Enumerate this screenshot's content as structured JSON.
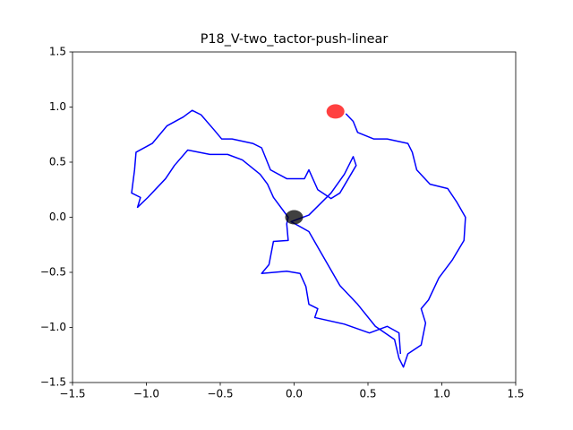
{
  "chart_data": {
    "type": "line",
    "title": "P18_V-two_tactor-push-linear",
    "xlim": [
      -1.5,
      1.5
    ],
    "ylim": [
      -1.5,
      1.5
    ],
    "xticks": [
      {
        "value": -1.5,
        "label": "−1.5"
      },
      {
        "value": -1,
        "label": "−1.0"
      },
      {
        "value": -0.5,
        "label": "−0.5"
      },
      {
        "value": 0,
        "label": "0.0"
      },
      0.5,
      {
        "value": 1,
        "label": "1.0"
      },
      1.5
    ],
    "yticks": [
      {
        "value": -1.5,
        "label": "−1.5"
      },
      {
        "value": -1,
        "label": "−1.0"
      },
      {
        "value": -0.5,
        "label": "−0.5"
      },
      {
        "value": 0,
        "label": "0.0"
      },
      0.5,
      {
        "value": 1,
        "label": "1.0"
      },
      1.5
    ],
    "grid": false,
    "series": [
      {
        "color": "#0000ff",
        "x": [
          0.35,
          0.4,
          0.43,
          0.54,
          0.63,
          0.77,
          0.8,
          0.83,
          0.92,
          1.04,
          1.1,
          1.16,
          1.15,
          1.07,
          0.98,
          0.91,
          0.86,
          0.89,
          0.86,
          0.77,
          0.74,
          0.71,
          0.68,
          0.55,
          0.43,
          0.31,
          0.19,
          0.1,
          -0.02,
          0.1,
          0.25,
          0.34,
          0.4,
          0.42,
          0.31,
          0.25,
          0.16,
          0.1,
          0.07,
          -0.05,
          -0.16,
          -0.22,
          -0.28,
          -0.42,
          -0.49,
          -0.54,
          -0.63,
          -0.69,
          -0.75,
          -0.86,
          -0.96,
          -1.07,
          -1.08,
          -1.1,
          -1.04,
          -1.06,
          -0.99,
          -0.87,
          -0.81,
          -0.72,
          -0.57,
          -0.45,
          -0.35,
          -0.23,
          -0.18,
          -0.14,
          -0.04,
          -0.05,
          -0.04,
          -0.14,
          -0.17,
          -0.22,
          -0.05,
          0.04,
          0.08,
          0.1,
          0.16,
          0.14,
          0.34,
          0.51,
          0.63,
          0.71,
          0.72
        ],
        "y": [
          0.94,
          0.87,
          0.77,
          0.71,
          0.71,
          0.67,
          0.59,
          0.43,
          0.3,
          0.26,
          0.14,
          0.0,
          -0.21,
          -0.39,
          -0.55,
          -0.75,
          -0.83,
          -0.96,
          -1.16,
          -1.24,
          -1.36,
          -1.28,
          -1.11,
          -0.99,
          -0.79,
          -0.62,
          -0.34,
          -0.13,
          -0.04,
          0.02,
          0.22,
          0.39,
          0.55,
          0.47,
          0.22,
          0.17,
          0.25,
          0.43,
          0.35,
          0.35,
          0.43,
          0.63,
          0.67,
          0.71,
          0.71,
          0.79,
          0.93,
          0.97,
          0.91,
          0.83,
          0.67,
          0.59,
          0.43,
          0.22,
          0.18,
          0.09,
          0.18,
          0.35,
          0.47,
          0.61,
          0.57,
          0.57,
          0.52,
          0.39,
          0.3,
          0.18,
          0.0,
          -0.06,
          -0.21,
          -0.22,
          -0.43,
          -0.51,
          -0.49,
          -0.51,
          -0.63,
          -0.79,
          -0.83,
          -0.91,
          -0.97,
          -1.05,
          -0.99,
          -1.05,
          -1.24
        ]
      }
    ],
    "markers": [
      {
        "x": 0.28,
        "y": 0.96,
        "color": "#ff0000"
      },
      {
        "x": 0.0,
        "y": 0.0,
        "color": "#000000"
      }
    ]
  }
}
